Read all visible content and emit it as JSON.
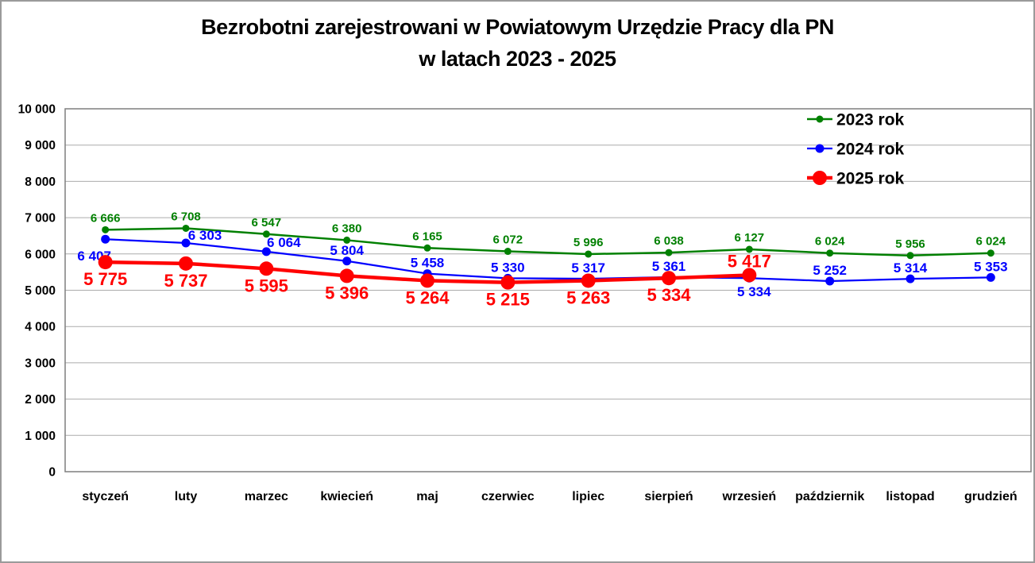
{
  "title": {
    "line1": "Bezrobotni zarejestrowani w Powiatowym Urzędzie Pracy dla PN",
    "line2": "w latach 2023 - 2025"
  },
  "colors": {
    "background": "#FFFFFF",
    "outer_border": "#9A9A9A",
    "plot_border": "#7F7F7F",
    "gridline": "#ABABAB",
    "axis_text": "#000000",
    "title_text": "#000000",
    "series_2023": "#008000",
    "series_2024": "#0000FF",
    "series_2025": "#FF0000"
  },
  "chart_data": {
    "type": "line",
    "title": "Bezrobotni zarejestrowani w Powiatowym Urzędzie Pracy dla PN w latach 2023 - 2025",
    "categories": [
      "styczeń",
      "luty",
      "marzec",
      "kwiecień",
      "maj",
      "czerwiec",
      "lipiec",
      "sierpień",
      "wrzesień",
      "październik",
      "listopad",
      "grudzień"
    ],
    "series": [
      {
        "name": "2023 rok",
        "color": "#008000",
        "line_width": 2.5,
        "marker_radius": 4.5,
        "label_font_size": 15,
        "values": [
          6666,
          6708,
          6547,
          6380,
          6165,
          6072,
          5996,
          6038,
          6127,
          6024,
          5956,
          6024
        ],
        "label_default_offset": {
          "dx": 0,
          "dy": -10
        },
        "label_overrides": {}
      },
      {
        "name": "2024 rok",
        "color": "#0000FF",
        "line_width": 2.25,
        "marker_radius": 5.5,
        "label_font_size": 17,
        "values": [
          6407,
          6303,
          6064,
          5804,
          5458,
          5330,
          5317,
          5361,
          5334,
          5252,
          5314,
          5353
        ],
        "label_default_offset": {
          "dx": 0,
          "dy": -8
        },
        "label_overrides": {
          "0": {
            "dx": -14,
            "dy": 27
          },
          "1": {
            "dx": 24,
            "dy": -4
          },
          "2": {
            "dx": 22,
            "dy": -6
          },
          "8": {
            "dx": 6,
            "dy": 23
          }
        }
      },
      {
        "name": "2025 rok",
        "color": "#FF0000",
        "line_width": 4.5,
        "marker_radius": 9,
        "label_font_size": 22,
        "values": [
          5775,
          5737,
          5595,
          5396,
          5264,
          5215,
          5263,
          5334,
          5417
        ],
        "label_default_offset": {
          "dx": 0,
          "dy": 29
        },
        "label_overrides": {
          "8": {
            "dx": 0,
            "dy": -10
          }
        }
      }
    ],
    "xlabel": "",
    "ylabel": "",
    "ylim": [
      0,
      10000
    ],
    "y_tick_step": 1000,
    "y_tick_labels": [
      "0",
      "1 000",
      "2 000",
      "3 000",
      "4 000",
      "5 000",
      "6 000",
      "7 000",
      "8 000",
      "9 000",
      "10 000"
    ],
    "grid": true,
    "legend_position": "top-right",
    "legend": [
      "2023 rok",
      "2024 rok",
      "2025 rok"
    ],
    "number_format": "space-thousands"
  }
}
